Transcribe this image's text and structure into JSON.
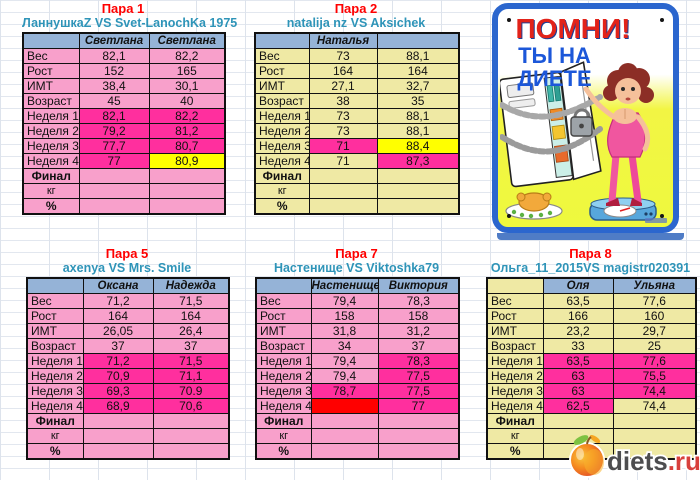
{
  "colors": {
    "light_pink": "#f8a0cb",
    "khaki": "#efe9a4",
    "highlight_magenta": "#ff2f9e",
    "cell_yellow": "#ffff00",
    "cell_red": "#ff0000",
    "header_blue": "#95b3d7",
    "title_red": "#ff0000",
    "subtitle_teal": "#2e94b8",
    "poster_border": "#2b66ce",
    "poster_yellow": "#eef93e",
    "poster_red": "#e2231a",
    "poster_blue": "#1c57d9",
    "logo_gray": "#4d4d4f",
    "logo_red": "#d8403c"
  },
  "row_labels": [
    "Вес",
    "Рост",
    "ИМТ",
    "Возраст",
    "Неделя 1",
    "Неделя 2",
    "Неделя 3",
    "Неделя 4",
    "Финал",
    "кг",
    "%"
  ],
  "tables": [
    {
      "id": "pair-1",
      "title": "Пара 1",
      "subtitle": "ЛаннушкаZ VS Svet-LanochKa 1975",
      "theme": "pink",
      "corner": "blue",
      "names": [
        "Светлана",
        "Светлана"
      ],
      "rows": [
        {
          "label": "Вес",
          "c": [
            [
              "82,1",
              "p"
            ],
            [
              "82,2",
              "p"
            ]
          ]
        },
        {
          "label": "Рост",
          "c": [
            [
              "152",
              "p"
            ],
            [
              "165",
              "p"
            ]
          ]
        },
        {
          "label": "ИМТ",
          "c": [
            [
              "38,4",
              "p"
            ],
            [
              "30,1",
              "p"
            ]
          ]
        },
        {
          "label": "Возраст",
          "c": [
            [
              "45",
              "p"
            ],
            [
              "40",
              "p"
            ]
          ]
        },
        {
          "label": "Неделя 1",
          "c": [
            [
              "82,1",
              "h"
            ],
            [
              "82,2",
              "h"
            ]
          ]
        },
        {
          "label": "Неделя 2",
          "c": [
            [
              "79,2",
              "h"
            ],
            [
              "81,2",
              "h"
            ]
          ]
        },
        {
          "label": "Неделя 3",
          "c": [
            [
              "77,7",
              "h"
            ],
            [
              "80,7",
              "h"
            ]
          ]
        },
        {
          "label": "Неделя 4",
          "c": [
            [
              "77",
              "h"
            ],
            [
              "80,9",
              "y"
            ]
          ]
        },
        {
          "label": "Финал",
          "lcls": "final",
          "c": [
            [
              "",
              "p"
            ],
            [
              "",
              "p"
            ]
          ]
        },
        {
          "label": "кг",
          "lcls": "sub",
          "c": [
            [
              "",
              "p"
            ],
            [
              "",
              "p"
            ]
          ]
        },
        {
          "label": "%",
          "lcls": "final",
          "c": [
            [
              "",
              "p"
            ],
            [
              "",
              "p"
            ]
          ]
        }
      ]
    },
    {
      "id": "pair-2",
      "title": "Пара 2",
      "subtitle": "natalija nz VS Aksichek",
      "theme": "khaki",
      "corner": "blue",
      "names": [
        "Наталья",
        ""
      ],
      "rows": [
        {
          "label": "Вес",
          "c": [
            [
              "73",
              "p"
            ],
            [
              "88,1",
              "p"
            ]
          ]
        },
        {
          "label": "Рост",
          "c": [
            [
              "164",
              "p"
            ],
            [
              "164",
              "p"
            ]
          ]
        },
        {
          "label": "ИМТ",
          "c": [
            [
              "27,1",
              "p"
            ],
            [
              "32,7",
              "p"
            ]
          ]
        },
        {
          "label": "Возраст",
          "c": [
            [
              "38",
              "p"
            ],
            [
              "35",
              "p"
            ]
          ]
        },
        {
          "label": "Неделя 1",
          "c": [
            [
              "73",
              "p"
            ],
            [
              "88,1",
              "p"
            ]
          ]
        },
        {
          "label": "Неделя 2",
          "c": [
            [
              "73",
              "p"
            ],
            [
              "88,1",
              "p"
            ]
          ]
        },
        {
          "label": "Неделя 3",
          "c": [
            [
              "71",
              "h"
            ],
            [
              "88,4",
              "y"
            ]
          ]
        },
        {
          "label": "Неделя 4",
          "c": [
            [
              "71",
              "p"
            ],
            [
              "87,3",
              "h"
            ]
          ]
        },
        {
          "label": "Финал",
          "lcls": "final",
          "c": [
            [
              "",
              "p"
            ],
            [
              "",
              "p"
            ]
          ]
        },
        {
          "label": "кг",
          "lcls": "sub",
          "c": [
            [
              "",
              "p"
            ],
            [
              "",
              "p"
            ]
          ]
        },
        {
          "label": "%",
          "lcls": "final",
          "c": [
            [
              "",
              "p"
            ],
            [
              "",
              "p"
            ]
          ]
        }
      ]
    },
    {
      "id": "pair-5",
      "title": "Пара 5",
      "subtitle": "axenya VS  Mrs. Smile",
      "theme": "pink",
      "corner": "blue",
      "names": [
        "Оксана",
        "Надежда"
      ],
      "rows": [
        {
          "label": "Вес",
          "c": [
            [
              "71,2",
              "p"
            ],
            [
              "71,5",
              "p"
            ]
          ]
        },
        {
          "label": "Рост",
          "c": [
            [
              "164",
              "p"
            ],
            [
              "164",
              "p"
            ]
          ]
        },
        {
          "label": "ИМТ",
          "c": [
            [
              "26,05",
              "p"
            ],
            [
              "26,4",
              "p"
            ]
          ]
        },
        {
          "label": "Возраст",
          "c": [
            [
              "37",
              "p"
            ],
            [
              "37",
              "p"
            ]
          ]
        },
        {
          "label": "Неделя 1",
          "c": [
            [
              "71,2",
              "h"
            ],
            [
              "71,5",
              "h"
            ]
          ]
        },
        {
          "label": "Неделя 2",
          "c": [
            [
              "70,9",
              "h"
            ],
            [
              "71,1",
              "h"
            ]
          ]
        },
        {
          "label": "Неделя 3",
          "c": [
            [
              "69,3",
              "h"
            ],
            [
              "70.9",
              "h"
            ]
          ]
        },
        {
          "label": "Неделя 4",
          "c": [
            [
              "68,9",
              "h"
            ],
            [
              "70,6",
              "h"
            ]
          ]
        },
        {
          "label": "Финал",
          "lcls": "final",
          "c": [
            [
              "",
              "p"
            ],
            [
              "",
              "p"
            ]
          ]
        },
        {
          "label": "кг",
          "lcls": "sub",
          "c": [
            [
              "",
              "p"
            ],
            [
              "",
              "p"
            ]
          ]
        },
        {
          "label": "%",
          "lcls": "final",
          "c": [
            [
              "",
              "p"
            ],
            [
              "",
              "p"
            ]
          ]
        }
      ]
    },
    {
      "id": "pair-7",
      "title": "Пара 7",
      "subtitle": "Настенище VS Viktoshka79",
      "theme": "pink",
      "corner": "blue",
      "names": [
        "Настенище",
        "Виктория"
      ],
      "rows": [
        {
          "label": "Вес",
          "c": [
            [
              "79,4",
              "p"
            ],
            [
              "78,3",
              "p"
            ]
          ]
        },
        {
          "label": "Рост",
          "c": [
            [
              "158",
              "p"
            ],
            [
              "158",
              "p"
            ]
          ]
        },
        {
          "label": "ИМТ",
          "c": [
            [
              "31,8",
              "p"
            ],
            [
              "31,2",
              "p"
            ]
          ]
        },
        {
          "label": "Возраст",
          "c": [
            [
              "34",
              "p"
            ],
            [
              "37",
              "p"
            ]
          ]
        },
        {
          "label": "Неделя 1",
          "c": [
            [
              "79,4",
              "p"
            ],
            [
              "78,3",
              "h"
            ]
          ]
        },
        {
          "label": "Неделя 2",
          "c": [
            [
              "79,4",
              "p"
            ],
            [
              "77,5",
              "h"
            ]
          ]
        },
        {
          "label": "Неделя 3",
          "c": [
            [
              "78,7",
              "h"
            ],
            [
              "77,5",
              "h"
            ]
          ]
        },
        {
          "label": "Неделя 4",
          "c": [
            [
              "",
              "r"
            ],
            [
              "77",
              "h"
            ]
          ]
        },
        {
          "label": "Финал",
          "lcls": "final",
          "c": [
            [
              "",
              "p"
            ],
            [
              "",
              "p"
            ]
          ]
        },
        {
          "label": "кг",
          "lcls": "sub",
          "c": [
            [
              "",
              "p"
            ],
            [
              "",
              "p"
            ]
          ]
        },
        {
          "label": "%",
          "lcls": "final",
          "c": [
            [
              "",
              "p"
            ],
            [
              "",
              "p"
            ]
          ]
        }
      ]
    },
    {
      "id": "pair-8",
      "title": "Пара 8",
      "subtitle": "Ольга_11_2015VS  magistr020391",
      "theme": "khaki",
      "corner": "plain",
      "names": [
        "Оля",
        "Ульяна"
      ],
      "rows": [
        {
          "label": "Вес",
          "c": [
            [
              "63,5",
              "p"
            ],
            [
              "77,6",
              "p"
            ]
          ]
        },
        {
          "label": "Рост",
          "c": [
            [
              "166",
              "p"
            ],
            [
              "160",
              "p"
            ]
          ]
        },
        {
          "label": "ИМТ",
          "c": [
            [
              "23,2",
              "p"
            ],
            [
              "29,7",
              "p"
            ]
          ]
        },
        {
          "label": "Возраст",
          "c": [
            [
              "33",
              "p"
            ],
            [
              "25",
              "p"
            ]
          ]
        },
        {
          "label": "Неделя 1",
          "c": [
            [
              "63,5",
              "h"
            ],
            [
              "77,6",
              "h"
            ]
          ]
        },
        {
          "label": "Неделя 2",
          "c": [
            [
              "63",
              "h"
            ],
            [
              "75,5",
              "h"
            ]
          ]
        },
        {
          "label": "Неделя 3",
          "c": [
            [
              "63",
              "h"
            ],
            [
              "74,4",
              "h"
            ]
          ]
        },
        {
          "label": "Неделя 4",
          "c": [
            [
              "62,5",
              "h"
            ],
            [
              "74,4",
              "p"
            ]
          ]
        },
        {
          "label": "Финал",
          "lcls": "final",
          "c": [
            [
              "",
              "p"
            ],
            [
              "",
              "p"
            ]
          ]
        },
        {
          "label": "кг",
          "lcls": "sub",
          "c": [
            [
              "",
              "p"
            ],
            [
              "",
              "p"
            ]
          ]
        },
        {
          "label": "%",
          "lcls": "final",
          "c": [
            [
              "",
              "p"
            ],
            [
              "",
              "p"
            ]
          ]
        }
      ]
    }
  ],
  "poster": {
    "line1": "ПОМНИ!",
    "line2": "ТЫ НА",
    "line3": "ДИЕТЕ"
  },
  "logo": {
    "word": "diets",
    "tld": ".ru"
  }
}
